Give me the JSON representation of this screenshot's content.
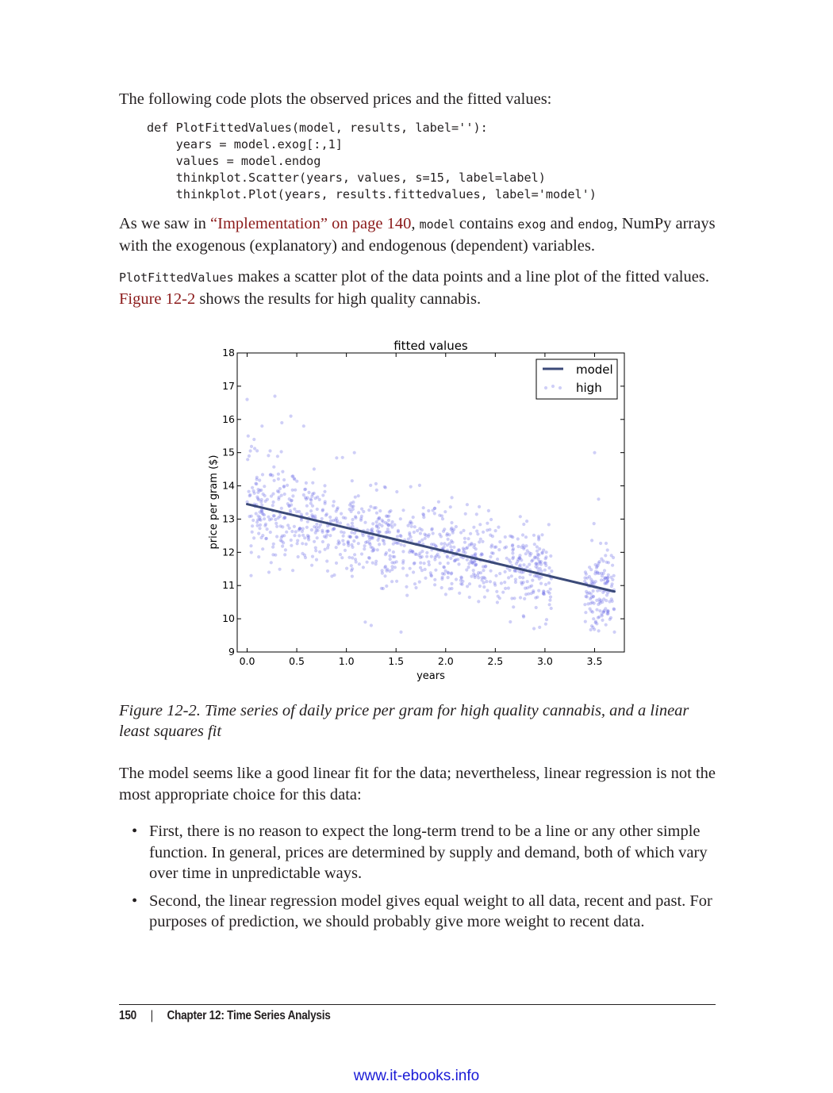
{
  "intro": "The following code plots the observed prices and the fitted values:",
  "code_lines": [
    "def PlotFittedValues(model, results, label=''):",
    "    years = model.exog[:,1]",
    "    values = model.endog",
    "    thinkplot.Scatter(years, values, s=15, label=label)",
    "    thinkplot.Plot(years, results.fittedvalues, label='model')"
  ],
  "para2": {
    "t1": "As we saw in ",
    "link": "“Implementation” on page 140",
    "t2": ", ",
    "c1": "model",
    "t3": " contains ",
    "c2": "exog",
    "t4": " and ",
    "c3": "endog",
    "t5": ", NumPy arrays with the exogenous (explanatory) and endogenous (dependent) variables."
  },
  "para3": {
    "c1": "PlotFittedValues",
    "t1": " makes a scatter plot of the data points and a line plot of the fitted values. ",
    "link": "Figure 12-2",
    "t2": " shows the results for high quality cannabis."
  },
  "chart_data": {
    "type": "scatter",
    "title": "fitted values",
    "xlabel": "years",
    "ylabel": "price per gram ($)",
    "xlim": [
      -0.1,
      3.8
    ],
    "ylim": [
      9,
      18
    ],
    "xticks": [
      "0.0",
      "0.5",
      "1.0",
      "1.5",
      "2.0",
      "2.5",
      "3.0",
      "3.5"
    ],
    "yticks": [
      "9",
      "10",
      "11",
      "12",
      "13",
      "14",
      "15",
      "16",
      "17",
      "18"
    ],
    "legend": {
      "placement": "top-right",
      "entries": [
        "model",
        "high"
      ]
    },
    "grid": false,
    "series": [
      {
        "name": "model",
        "kind": "line",
        "color": "#3b4a78",
        "x": [
          0.0,
          3.7
        ],
        "y": [
          13.45,
          10.82
        ]
      },
      {
        "name": "high",
        "kind": "scatter",
        "color": "#6a6ae6",
        "x": [
          0.0,
          0.01,
          0.02,
          0.04,
          0.15,
          0.22,
          0.28,
          0.35,
          0.44,
          0.57,
          1.08,
          1.19,
          1.25,
          1.55,
          3.5,
          3.54,
          3.7
        ],
        "y": [
          16.6,
          15.5,
          14.9,
          11.3,
          15.8,
          11.4,
          16.7,
          15.9,
          16.1,
          15.8,
          15.0,
          9.9,
          9.8,
          9.6,
          15.0,
          13.6,
          9.6
        ],
        "trend": {
          "intercept": 13.45,
          "slope": -0.71,
          "spread": 0.65,
          "n": 1100
        }
      }
    ]
  },
  "caption": "Figure 12-2. Time series of daily price per gram for high quality cannabis, and a linear least squares fit",
  "para4": "The model seems like a good linear fit for the data; nevertheless, linear regression is not the most appropriate choice for this data:",
  "bullets": [
    "First, there is no reason to expect the long-term trend to be a line or any other simple function. In general, prices are determined by supply and demand, both of which vary over time in unpredictable ways.",
    "Second, the linear regression model gives equal weight to all data, recent and past. For purposes of prediction, we should probably give more weight to recent data."
  ],
  "bullet_symbol": "•",
  "footer": {
    "page": "150",
    "sep": "|",
    "chapter": "Chapter 12: Time Series Analysis"
  },
  "watermark": "www.it-ebooks.info"
}
